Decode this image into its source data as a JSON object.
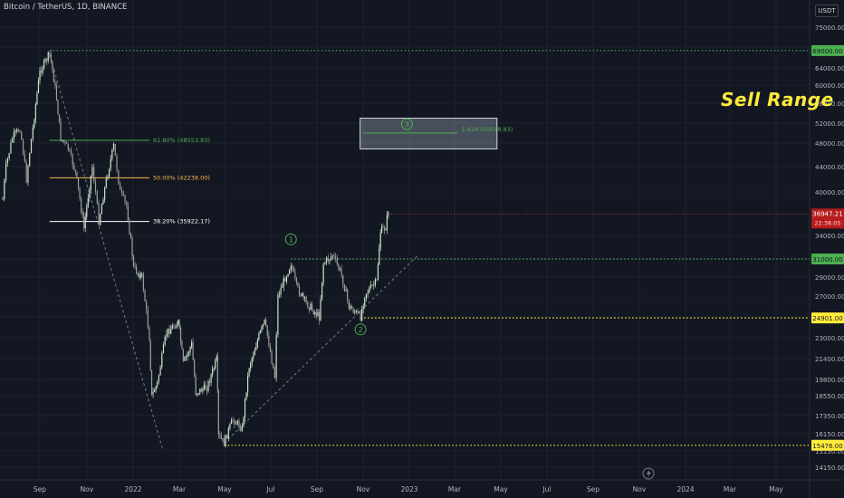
{
  "header": {
    "title": "Bitcoin / TetherUS, 1D, BINANCE",
    "currency": "USDT"
  },
  "annotation": {
    "sell_range": "Sell Range"
  },
  "chart_data": {
    "type": "line",
    "title": "Bitcoin / TetherUS, 1D, BINANCE",
    "x_ticks": [
      "Sep",
      "Nov",
      "2022",
      "Mar",
      "May",
      "Jul",
      "Sep",
      "Nov",
      "2023",
      "Mar",
      "May",
      "Jul",
      "Sep",
      "Nov",
      "2024",
      "Mar",
      "May"
    ],
    "y_ticks": [
      "75000.00",
      "70000.00",
      "64000.00",
      "60000.00",
      "56000.00",
      "52000.00",
      "48000.00",
      "44000.00",
      "40000.00",
      "34000.00",
      "31000.00",
      "29000.00",
      "27000.00",
      "25000.00",
      "23000.00",
      "21400.00",
      "19800.00",
      "18550.00",
      "17350.00",
      "16150.00",
      "15150.00",
      "14150.00"
    ],
    "series": [
      {
        "values": [
          [
            "2021-08-01",
            39000
          ],
          [
            "2021-08-08",
            44000
          ],
          [
            "2021-08-22",
            49000
          ],
          [
            "2021-09-07",
            51000
          ],
          [
            "2021-09-21",
            42000
          ],
          [
            "2021-10-05",
            51000
          ],
          [
            "2021-10-20",
            63000
          ],
          [
            "2021-11-10",
            68000
          ],
          [
            "2021-11-25",
            57000
          ],
          [
            "2021-12-04",
            49000
          ],
          [
            "2021-12-20",
            47000
          ],
          [
            "2022-01-05",
            43000
          ],
          [
            "2022-01-23",
            35000
          ],
          [
            "2022-02-10",
            44000
          ],
          [
            "2022-02-24",
            36000
          ],
          [
            "2022-03-28",
            47500
          ],
          [
            "2022-04-11",
            40000
          ],
          [
            "2022-04-25",
            38000
          ],
          [
            "2022-05-10",
            30000
          ],
          [
            "2022-05-28",
            29000
          ],
          [
            "2022-06-13",
            23000
          ],
          [
            "2022-06-18",
            18500
          ],
          [
            "2022-06-30",
            19500
          ],
          [
            "2022-07-20",
            23500
          ],
          [
            "2022-08-14",
            24500
          ],
          [
            "2022-08-25",
            21000
          ],
          [
            "2022-09-12",
            22500
          ],
          [
            "2022-09-21",
            18800
          ],
          [
            "2022-10-15",
            19200
          ],
          [
            "2022-11-05",
            21300
          ],
          [
            "2022-11-09",
            16000
          ],
          [
            "2022-11-21",
            15600
          ],
          [
            "2022-12-10",
            17100
          ],
          [
            "2022-12-30",
            16500
          ],
          [
            "2023-01-14",
            20800
          ],
          [
            "2023-02-16",
            24500
          ],
          [
            "2023-03-10",
            20000
          ],
          [
            "2023-03-17",
            27000
          ],
          [
            "2023-04-14",
            30500
          ],
          [
            "2023-04-26",
            28000
          ],
          [
            "2023-05-14",
            26500
          ],
          [
            "2023-06-14",
            25000
          ],
          [
            "2023-06-23",
            30500
          ],
          [
            "2023-07-13",
            31500
          ],
          [
            "2023-08-01",
            29200
          ],
          [
            "2023-08-17",
            26000
          ],
          [
            "2023-09-11",
            25000
          ],
          [
            "2023-09-20",
            27200
          ],
          [
            "2023-10-16",
            28500
          ],
          [
            "2023-10-24",
            34500
          ],
          [
            "2023-11-04",
            35200
          ],
          [
            "2023-11-10",
            37500
          ]
        ]
      }
    ],
    "fibonacci": [
      {
        "label": "61.80% (48553.83)",
        "value": 48553.83,
        "color": "#4caf50"
      },
      {
        "label": "50.00% (42238.00)",
        "value": 42238.0,
        "color": "#ffb74d"
      },
      {
        "label": "38.20% (35922.17)",
        "value": 35922.17,
        "color": "#ffffff"
      }
    ],
    "levels": [
      {
        "label": "69000.00",
        "value": 69000,
        "color": "#4caf50",
        "style": "dotted"
      },
      {
        "label": "31000.00",
        "value": 31000,
        "color": "#4caf50",
        "style": "dotted"
      },
      {
        "label": "24901.00",
        "value": 24901,
        "color": "#ffeb3b",
        "style": "dotted"
      },
      {
        "label": "15476.00",
        "value": 15476,
        "color": "#ffeb3b",
        "style": "dotted"
      }
    ],
    "last_price": {
      "label": "36947.21",
      "countdown": "22:38:05",
      "value": 36947.21
    },
    "target_box": {
      "label": "1.618 (50018.83)",
      "top": 53000,
      "bottom": 47000,
      "from": "2023-09-10",
      "to": "2024-07-01"
    },
    "waves": [
      {
        "label": "1",
        "date": "2023-04-14",
        "value": 33500
      },
      {
        "label": "2",
        "date": "2023-09-11",
        "value": 23800
      },
      {
        "label": "3",
        "date": "2023-12-20",
        "value": 51800
      }
    ],
    "trendlines": [
      {
        "from": [
          "2021-11-10",
          68000
        ],
        "to": [
          "2022-07-12",
          15200
        ],
        "style": "dashed"
      },
      {
        "from": [
          "2022-11-21",
          15600
        ],
        "to": [
          "2024-01-15",
          31600
        ],
        "style": "dashed"
      }
    ]
  },
  "footer": {
    "lightning_icon": "lightning-icon"
  }
}
